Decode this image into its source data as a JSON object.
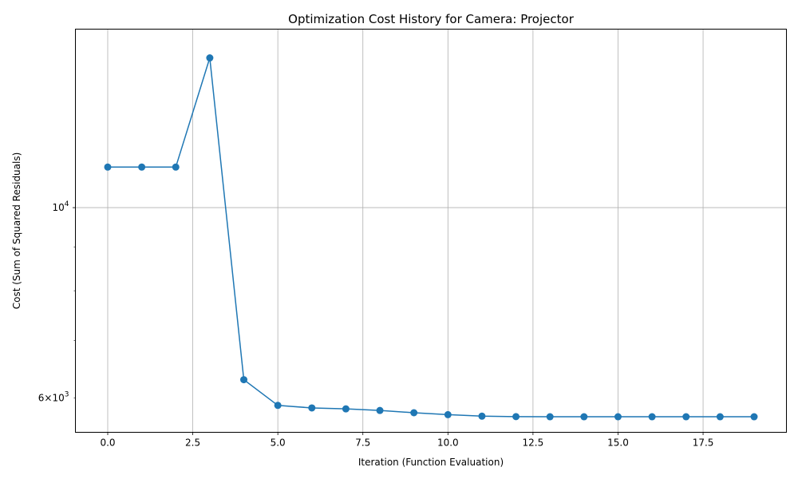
{
  "chart_data": {
    "type": "line",
    "title": "Optimization Cost History for Camera: Projector",
    "xlabel": "Iteration (Function Evaluation)",
    "ylabel": "Cost (Sum of Squared Residuals)",
    "xlim": [
      -0.95,
      19.95
    ],
    "ylim": [
      5470,
      16150
    ],
    "yscale": "log",
    "grid": true,
    "x_ticks": [
      0,
      2.5,
      5,
      7.5,
      10,
      12.5,
      15,
      17.5
    ],
    "x_tick_labels": [
      "0.0",
      "2.5",
      "5.0",
      "7.5",
      "10.0",
      "12.5",
      "15.0",
      "17.5"
    ],
    "y_major_ticks": [
      10000
    ],
    "y_major_tick_labels": [
      {
        "base": "10",
        "exp": "4"
      }
    ],
    "y_minor_ticks": [
      6000,
      7000,
      8000,
      9000
    ],
    "y_minor_labeled": [
      {
        "value": 6000,
        "coef": "6",
        "times": "×",
        "base": "10",
        "exp": "3"
      }
    ],
    "color": "#1f77b4",
    "series": [
      {
        "name": "",
        "x": [
          0,
          1,
          2,
          3,
          4,
          5,
          6,
          7,
          8,
          9,
          10,
          11,
          12,
          13,
          14,
          15,
          16,
          17,
          18,
          19
        ],
        "y": [
          11150,
          11150,
          11150,
          14950,
          6300,
          5880,
          5840,
          5825,
          5800,
          5765,
          5735,
          5712,
          5705,
          5703,
          5703,
          5703,
          5703,
          5703,
          5703,
          5703
        ]
      }
    ]
  }
}
